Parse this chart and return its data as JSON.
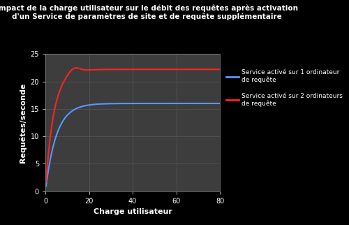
{
  "title_line1": "Impact de la charge utilisateur sur le débit des requêtes après activation",
  "title_line2": "d'un Service de paramètres de site et de requête supplémentaire",
  "xlabel": "Charge utilisateur",
  "ylabel": "Requêtes/seconde",
  "xlim": [
    0,
    80
  ],
  "ylim": [
    0,
    25
  ],
  "xticks": [
    0,
    20,
    40,
    60,
    80
  ],
  "yticks": [
    0,
    5,
    10,
    15,
    20,
    25
  ],
  "background_color": "#000000",
  "plot_bg_color": "#3d3d3d",
  "grid_color": "#5a5a5a",
  "title_color": "#ffffff",
  "axis_label_color": "#ffffff",
  "tick_color": "#ffffff",
  "legend1_label": "Service activé sur 1 ordinateur\nde requête",
  "legend2_label": "Service activé sur 2 ordinateurs\nde requête",
  "line1_color": "#5599ff",
  "line2_color": "#ff2222",
  "line_width": 1.5
}
